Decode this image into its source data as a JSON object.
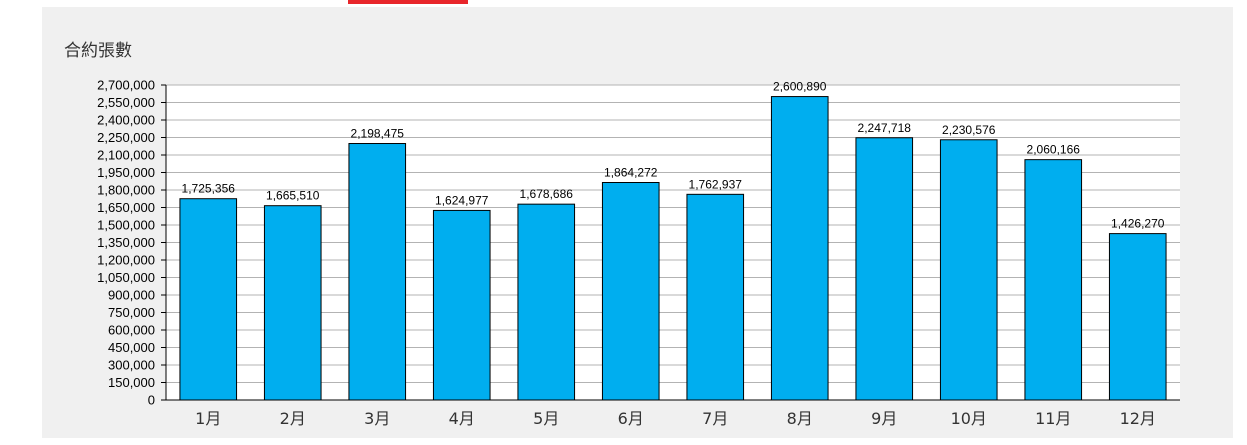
{
  "chart_data": {
    "type": "bar",
    "title": "合約張數",
    "categories": [
      "1月",
      "2月",
      "3月",
      "4月",
      "5月",
      "6月",
      "7月",
      "8月",
      "9月",
      "10月",
      "11月",
      "12月"
    ],
    "values": [
      1725356,
      1665510,
      2198475,
      1624977,
      1678686,
      1864272,
      1762937,
      2600890,
      2247718,
      2230576,
      2060166,
      1426270
    ],
    "value_labels": [
      "1,725,356",
      "1,665,510",
      "2,198,475",
      "1,624,977",
      "1,678,686",
      "1,864,272",
      "1,762,937",
      "2,600,890",
      "2,247,718",
      "2,230,576",
      "2,060,166",
      "1,426,270"
    ],
    "ylim": [
      0,
      2700000
    ],
    "yticks": [
      0,
      150000,
      300000,
      450000,
      600000,
      750000,
      900000,
      1050000,
      1200000,
      1350000,
      1500000,
      1650000,
      1800000,
      1950000,
      2100000,
      2250000,
      2400000,
      2550000,
      2700000
    ],
    "ytick_labels": [
      "0",
      "150,000",
      "300,000",
      "450,000",
      "600,000",
      "750,000",
      "900,000",
      "1,050,000",
      "1,200,000",
      "1,350,000",
      "1,500,000",
      "1,650,000",
      "1,800,000",
      "1,950,000",
      "2,100,000",
      "2,250,000",
      "2,400,000",
      "2,550,000",
      "2,700,000"
    ],
    "grid": true,
    "legend": "none",
    "colors": {
      "bar": "#00aeef",
      "bar_edge": "#000000",
      "grid": "#b3b3b3",
      "plot_bg": "#ffffff",
      "panel_bg": "#f0f0f0",
      "accent": "#e8262b"
    }
  }
}
